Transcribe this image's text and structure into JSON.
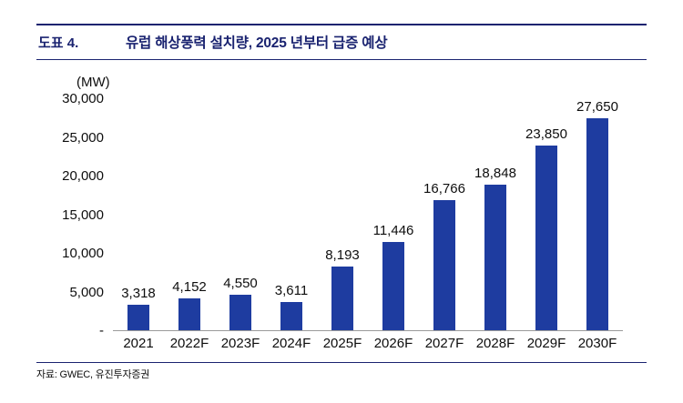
{
  "header": {
    "label": "도표 4.",
    "title": "유럽 해상풍력 설치량, 2025 년부터 급증 예상"
  },
  "chart_data": {
    "type": "bar",
    "title": "유럽 해상풍력 설치량, 2025 년부터 급증 예상",
    "unit_label": "(MW)",
    "categories": [
      "2021",
      "2022F",
      "2023F",
      "2024F",
      "2025F",
      "2026F",
      "2027F",
      "2028F",
      "2029F",
      "2030F"
    ],
    "values": [
      3318,
      4152,
      4550,
      3611,
      8193,
      11446,
      16766,
      18848,
      23850,
      27650
    ],
    "value_labels": [
      "3,318",
      "4,152",
      "4,550",
      "3,611",
      "8,193",
      "11,446",
      "16,766",
      "18,848",
      "23,850",
      "27,650"
    ],
    "y_ticks": [
      "30,000",
      "25,000",
      "20,000",
      "15,000",
      "10,000",
      "5,000",
      "-"
    ],
    "ylim": [
      0,
      30000
    ],
    "xlabel": "",
    "ylabel": "(MW)",
    "grid": false,
    "legend": "none",
    "bar_color": "#1E3CA0"
  },
  "footer": {
    "source": "자료: GWEC, 유진투자증권"
  }
}
